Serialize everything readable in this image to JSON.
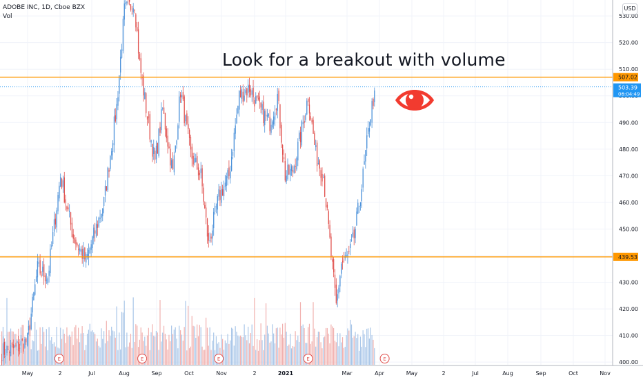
{
  "legend": {
    "symbol_line": "ADOBE INC, 1D, Cboe BZX",
    "volume_label": "Vol"
  },
  "annotation": "Look for a breakout with volume",
  "currency": "USD",
  "colors": {
    "up": "#4a90d9",
    "down": "#e0504d",
    "vol_up": "#a9c6e8",
    "vol_down": "#f1b0ae",
    "hline": "#ff9800",
    "last_price": "#2196f3",
    "eye": "#f23b2f"
  },
  "icons": {
    "watch": "eye-icon"
  },
  "chart_data": {
    "type": "candlestick",
    "title": "ADOBE INC, 1D, Cboe BZX",
    "y_ticks": [
      400,
      410,
      420,
      430,
      440,
      450,
      460,
      470,
      480,
      490,
      500,
      510,
      520,
      530
    ],
    "y_tick_labels": [
      "400.00",
      "410.00",
      "420.00",
      "430.00",
      "440.00",
      "450.00",
      "460.00",
      "470.00",
      "480.00",
      "490.00",
      "500.00",
      "510.00",
      "520.00",
      "530.00"
    ],
    "ylim": [
      399,
      536
    ],
    "x_tick_labels": [
      "May",
      "2",
      "Jul",
      "Aug",
      "Sep",
      "Oct",
      "Nov",
      "2",
      "2021",
      "Mar",
      "Apr",
      "May",
      "2",
      "Jul",
      "Aug",
      "Sep",
      "Oct",
      "Nov"
    ],
    "bar_count": 250,
    "price_path": [
      [
        0,
        404
      ],
      [
        10,
        405
      ],
      [
        20,
        408
      ],
      [
        28,
        435
      ],
      [
        36,
        432
      ],
      [
        46,
        470
      ],
      [
        56,
        447
      ],
      [
        66,
        438
      ],
      [
        80,
        460
      ],
      [
        90,
        496
      ],
      [
        96,
        532
      ],
      [
        104,
        535
      ],
      [
        108,
        512
      ],
      [
        114,
        492
      ],
      [
        120,
        475
      ],
      [
        126,
        495
      ],
      [
        134,
        471
      ],
      [
        140,
        502
      ],
      [
        148,
        478
      ],
      [
        156,
        470
      ],
      [
        162,
        444
      ],
      [
        170,
        462
      ],
      [
        178,
        470
      ],
      [
        186,
        500
      ],
      [
        194,
        503
      ],
      [
        202,
        495
      ],
      [
        210,
        490
      ],
      [
        216,
        500
      ],
      [
        222,
        470
      ],
      [
        228,
        472
      ],
      [
        234,
        485
      ],
      [
        240,
        500
      ],
      [
        246,
        478
      ],
      [
        252,
        470
      ],
      [
        258,
        440
      ],
      [
        262,
        421
      ],
      [
        266,
        437
      ],
      [
        272,
        440
      ],
      [
        276,
        447
      ],
      [
        282,
        466
      ],
      [
        288,
        490
      ],
      [
        292,
        502
      ]
    ],
    "horizontal_levels": [
      {
        "value": 507.02,
        "label": "507.02"
      },
      {
        "value": 439.53,
        "label": "439.53"
      }
    ],
    "last_price": {
      "value": 503.39,
      "label": "503.39",
      "countdown": "06:04:49"
    },
    "earnings_markers": [
      {
        "label": "E",
        "bar": 45
      },
      {
        "label": "E",
        "bar": 110
      },
      {
        "label": "E",
        "bar": 170
      },
      {
        "label": "E",
        "bar": 240
      },
      {
        "label": "E",
        "bar": 300
      }
    ],
    "grid": true
  }
}
